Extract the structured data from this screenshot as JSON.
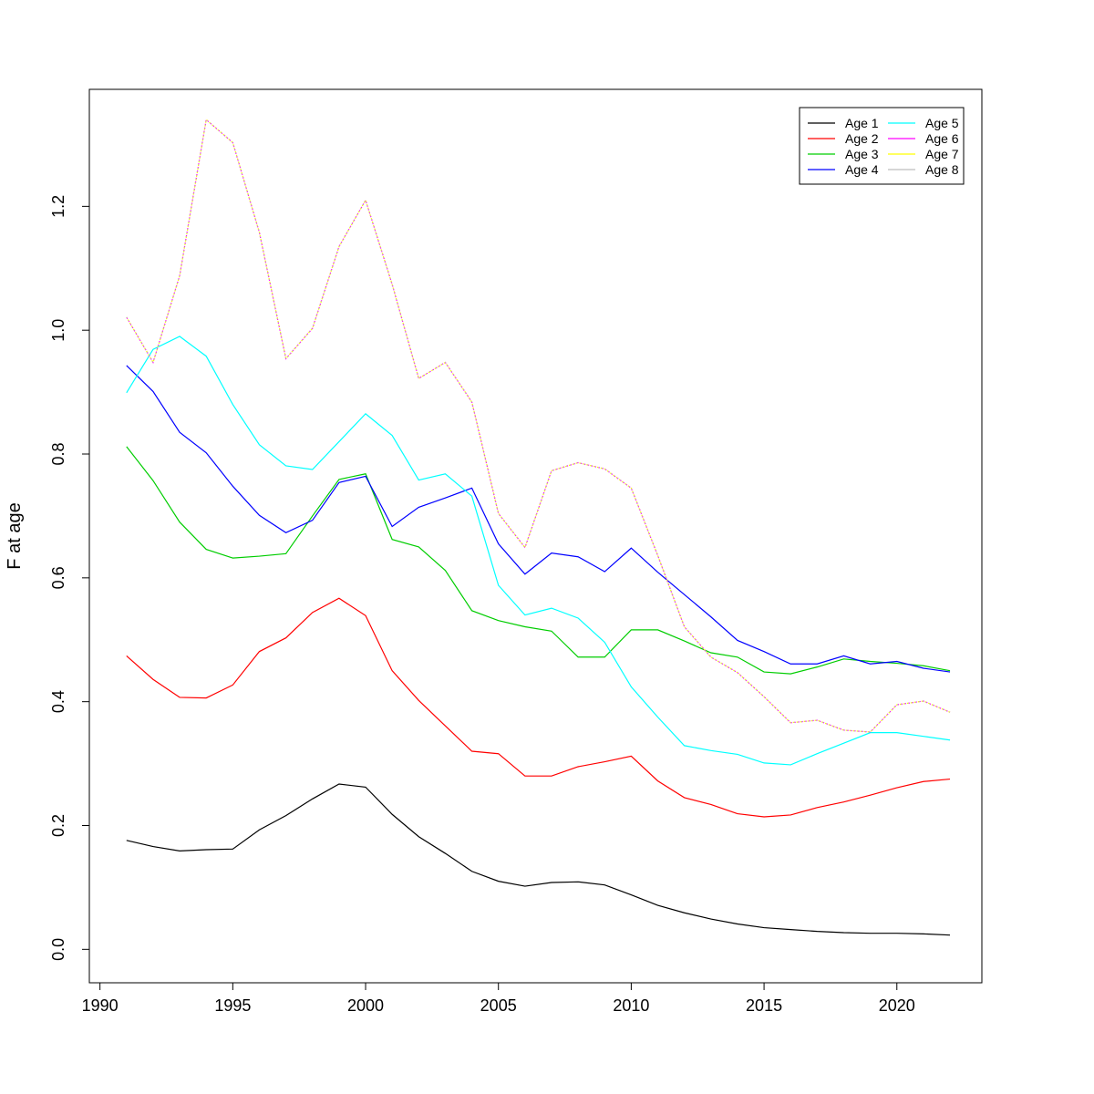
{
  "chart_data": {
    "type": "line",
    "title": "",
    "xlabel": "",
    "ylabel": "F at age",
    "xlim": [
      1989.6,
      2023.2
    ],
    "ylim": [
      -0.054,
      1.389
    ],
    "x_ticks": [
      1990,
      1995,
      2000,
      2005,
      2010,
      2015,
      2020
    ],
    "y_ticks": [
      0.0,
      0.2,
      0.4,
      0.6,
      0.8,
      1.0,
      1.2
    ],
    "y_tick_labels": [
      "0.0",
      "0.2",
      "0.4",
      "0.6",
      "0.8",
      "1.0",
      "1.2"
    ],
    "grid": false,
    "legend_position": "top-right",
    "x": [
      1991,
      1992,
      1993,
      1994,
      1995,
      1996,
      1997,
      1998,
      1999,
      2000,
      2001,
      2002,
      2003,
      2004,
      2005,
      2006,
      2007,
      2008,
      2009,
      2010,
      2011,
      2012,
      2013,
      2014,
      2015,
      2016,
      2017,
      2018,
      2019,
      2020,
      2021,
      2022
    ],
    "series": [
      {
        "name": "Age 1",
        "color": "#000000",
        "values": [
          0.176,
          0.166,
          0.159,
          0.161,
          0.162,
          0.193,
          0.216,
          0.243,
          0.267,
          0.262,
          0.218,
          0.182,
          0.155,
          0.126,
          0.11,
          0.102,
          0.108,
          0.109,
          0.104,
          0.088,
          0.071,
          0.059,
          0.049,
          0.041,
          0.035,
          0.032,
          0.029,
          0.027,
          0.026,
          0.026,
          0.025,
          0.023
        ]
      },
      {
        "name": "Age 2",
        "color": "#ff0000",
        "values": [
          0.474,
          0.436,
          0.407,
          0.406,
          0.427,
          0.481,
          0.503,
          0.544,
          0.567,
          0.539,
          0.45,
          0.402,
          0.361,
          0.32,
          0.316,
          0.28,
          0.28,
          0.295,
          0.303,
          0.312,
          0.272,
          0.245,
          0.234,
          0.219,
          0.214,
          0.217,
          0.229,
          0.238,
          0.249,
          0.261,
          0.271,
          0.275
        ]
      },
      {
        "name": "Age 3",
        "color": "#00cd00",
        "values": [
          0.812,
          0.757,
          0.69,
          0.646,
          0.632,
          0.635,
          0.639,
          0.7,
          0.759,
          0.768,
          0.662,
          0.65,
          0.612,
          0.547,
          0.531,
          0.521,
          0.514,
          0.472,
          0.472,
          0.516,
          0.516,
          0.498,
          0.479,
          0.472,
          0.448,
          0.445,
          0.456,
          0.469,
          0.465,
          0.462,
          0.458,
          0.45
        ]
      },
      {
        "name": "Age 4",
        "color": "#0000ff",
        "values": [
          0.943,
          0.901,
          0.835,
          0.802,
          0.748,
          0.701,
          0.673,
          0.693,
          0.754,
          0.764,
          0.683,
          0.714,
          0.729,
          0.745,
          0.655,
          0.606,
          0.64,
          0.634,
          0.61,
          0.648,
          0.609,
          0.573,
          0.537,
          0.499,
          0.481,
          0.461,
          0.461,
          0.474,
          0.461,
          0.465,
          0.454,
          0.448
        ]
      },
      {
        "name": "Age 5",
        "color": "#00ffff",
        "values": [
          0.899,
          0.969,
          0.99,
          0.958,
          0.88,
          0.815,
          0.781,
          0.775,
          0.82,
          0.865,
          0.83,
          0.758,
          0.768,
          0.732,
          0.588,
          0.54,
          0.551,
          0.535,
          0.496,
          0.424,
          0.375,
          0.329,
          0.321,
          0.315,
          0.301,
          0.298,
          0.316,
          0.333,
          0.35,
          0.35,
          0.344,
          0.338
        ]
      },
      {
        "name": "Age 6",
        "color": "#ff00ff",
        "values": [
          1.021,
          0.948,
          1.088,
          1.34,
          1.303,
          1.158,
          0.954,
          1.003,
          1.135,
          1.21,
          1.074,
          0.922,
          0.948,
          0.884,
          0.704,
          0.649,
          0.773,
          0.786,
          0.776,
          0.745,
          0.636,
          0.521,
          0.472,
          0.447,
          0.408,
          0.366,
          0.37,
          0.354,
          0.351,
          0.395,
          0.401,
          0.383
        ]
      },
      {
        "name": "Age 7",
        "color": "#ffff00",
        "values": [
          1.021,
          0.948,
          1.088,
          1.34,
          1.303,
          1.158,
          0.954,
          1.003,
          1.135,
          1.21,
          1.074,
          0.922,
          0.948,
          0.884,
          0.704,
          0.649,
          0.773,
          0.786,
          0.776,
          0.745,
          0.636,
          0.521,
          0.472,
          0.447,
          0.408,
          0.366,
          0.37,
          0.354,
          0.351,
          0.395,
          0.401,
          0.383
        ]
      },
      {
        "name": "Age 8",
        "color": "#bebebe",
        "values": [
          1.021,
          0.948,
          1.088,
          1.34,
          1.303,
          1.158,
          0.954,
          1.003,
          1.135,
          1.21,
          1.074,
          0.922,
          0.948,
          0.884,
          0.704,
          0.649,
          0.773,
          0.786,
          0.776,
          0.745,
          0.636,
          0.521,
          0.472,
          0.447,
          0.408,
          0.366,
          0.37,
          0.354,
          0.351,
          0.395,
          0.401,
          0.383
        ]
      }
    ]
  }
}
